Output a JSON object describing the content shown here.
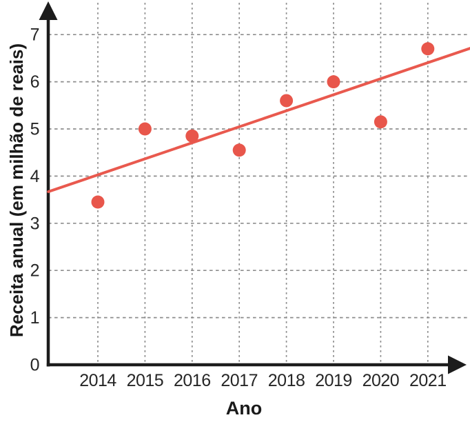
{
  "chart_data": {
    "type": "scatter",
    "title": "",
    "xlabel": "Ano",
    "ylabel": "Receita anual (em milhão de reais)",
    "categories": [
      "2014",
      "2015",
      "2016",
      "2017",
      "2018",
      "2019",
      "2020",
      "2021"
    ],
    "series": [
      {
        "name": "Receita anual",
        "type": "scatter",
        "x": [
          2014,
          2015,
          2016,
          2017,
          2018,
          2019,
          2020,
          2021
        ],
        "values": [
          3.45,
          5.0,
          4.85,
          4.55,
          5.6,
          6.0,
          5.15,
          6.7
        ]
      }
    ],
    "trendline": {
      "type": "linear",
      "x1": 2012.95,
      "y1": 3.67,
      "x2": 2021.9,
      "y2": 6.71,
      "slope_per_year": 0.34
    },
    "xlim": [
      2012.95,
      2021.95
    ],
    "ylim": [
      0,
      7.7
    ],
    "yticks": [
      0,
      1,
      2,
      3,
      4,
      5,
      6,
      7
    ],
    "grid": "dashed-both",
    "legend": "none",
    "colors": {
      "point": "#e8564b",
      "trend_line": "#e9594e",
      "grid": "#8d8d8d",
      "axis": "#1c1c1c",
      "text": "#262626",
      "background": "#ffffff"
    }
  }
}
